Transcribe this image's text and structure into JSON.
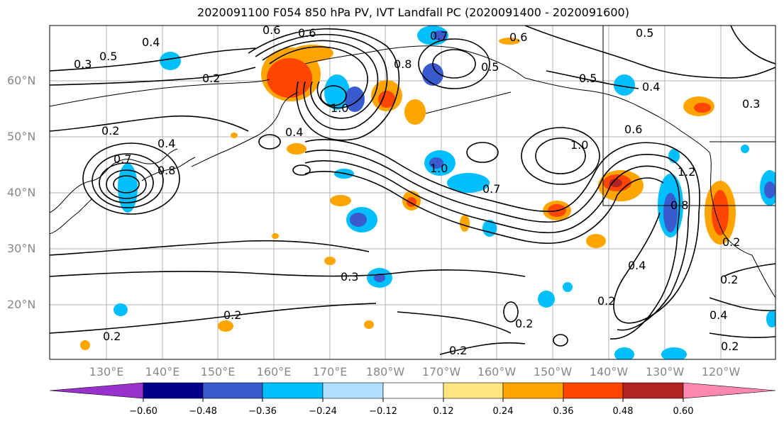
{
  "title": "2020091100 F054 850 hPa PV, IVT Landfall PC (2020091400 - 2020091600)",
  "lat_labels": [
    "60°N",
    "50°N",
    "40°N",
    "30°N",
    "20°N"
  ],
  "lon_labels": [
    "130°E",
    "140°E",
    "150°E",
    "160°E",
    "170°E",
    "180°W",
    "170°W",
    "160°W",
    "150°W",
    "140°W",
    "130°W",
    "120°W"
  ],
  "contour_labels": [
    "0.4",
    "0.5",
    "0.6",
    "0.7",
    "0.6",
    "0.5",
    "0.3",
    "0.6",
    "0.2",
    "0.8",
    "0.5",
    "0.4",
    "0.3",
    "0.5",
    "1.0",
    "0.4",
    "0.2",
    "0.4",
    "0.7",
    "0.8",
    "0.6",
    "1.0",
    "1.0",
    "0.7",
    "1.2",
    "0.8",
    "0.3",
    "0.2",
    "0.4",
    "0.2",
    "0.2",
    "0.2",
    "0.2",
    "0.4",
    "0.2",
    "0.2",
    "0.2"
  ],
  "colorbar": {
    "ticks": [
      "−0.60",
      "−0.48",
      "−0.36",
      "−0.24",
      "−0.12",
      "0.12",
      "0.24",
      "0.36",
      "0.48",
      "0.60"
    ],
    "colors": [
      "#9932cc",
      "#00008b",
      "#3a5bd0",
      "#00bfff",
      "#b0e0ff",
      "#ffffff",
      "#ffe680",
      "#ffa500",
      "#ff4500",
      "#b22222",
      "#ff88b0"
    ]
  }
}
